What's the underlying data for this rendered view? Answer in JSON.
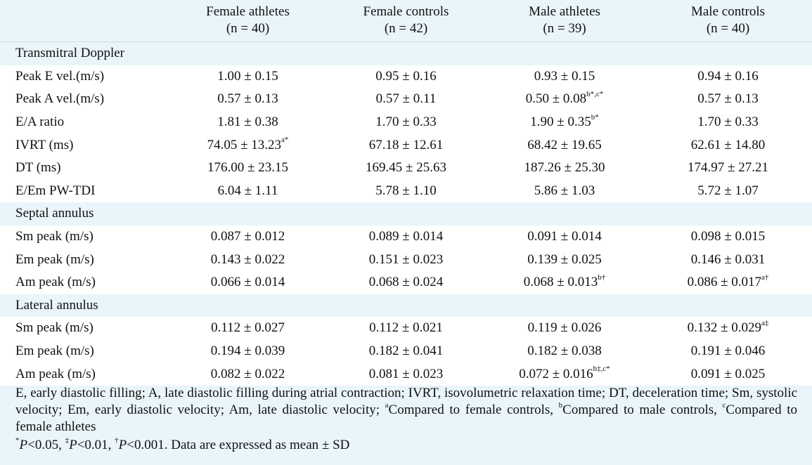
{
  "header": {
    "columns": [
      {
        "line1": "",
        "line2": ""
      },
      {
        "line1": "Female athletes",
        "line2": "(n = 40)"
      },
      {
        "line1": "Female controls",
        "line2": "(n = 42)"
      },
      {
        "line1": "Male athletes",
        "line2": "(n = 39)"
      },
      {
        "line1": "Male controls",
        "line2": "(n = 40)"
      }
    ]
  },
  "sections": [
    {
      "title": "Transmitral Doppler",
      "rows": [
        {
          "label": "Peak E vel.(m/s)",
          "cells": [
            {
              "v": "1.00 ± 0.15",
              "s": ""
            },
            {
              "v": "0.95 ± 0.16",
              "s": ""
            },
            {
              "v": "0.93 ± 0.15",
              "s": ""
            },
            {
              "v": "0.94 ± 0.16",
              "s": ""
            }
          ]
        },
        {
          "label": "Peak A vel.(m/s)",
          "cells": [
            {
              "v": "0.57 ± 0.13",
              "s": ""
            },
            {
              "v": "0.57 ± 0.11",
              "s": ""
            },
            {
              "v": "0.50 ± 0.08",
              "s": "b*,c*"
            },
            {
              "v": "0.57 ± 0.13",
              "s": ""
            }
          ]
        },
        {
          "label": "E/A ratio",
          "cells": [
            {
              "v": "1.81 ± 0.38",
              "s": ""
            },
            {
              "v": "1.70 ± 0.33",
              "s": ""
            },
            {
              "v": "1.90 ± 0.35",
              "s": "b*"
            },
            {
              "v": "1.70 ± 0.33",
              "s": ""
            }
          ]
        },
        {
          "label": "IVRT (ms)",
          "cells": [
            {
              "v": "74.05 ± 13.23",
              "s": "a*"
            },
            {
              "v": "67.18 ± 12.61",
              "s": ""
            },
            {
              "v": "68.42 ± 19.65",
              "s": ""
            },
            {
              "v": "62.61 ± 14.80",
              "s": ""
            }
          ]
        },
        {
          "label": "DT (ms)",
          "cells": [
            {
              "v": "176.00 ± 23.15",
              "s": ""
            },
            {
              "v": "169.45 ± 25.63",
              "s": ""
            },
            {
              "v": "187.26 ± 25.30",
              "s": ""
            },
            {
              "v": "174.97 ± 27.21",
              "s": ""
            }
          ]
        },
        {
          "label": "E/Em PW-TDI",
          "cells": [
            {
              "v": "6.04 ± 1.11",
              "s": ""
            },
            {
              "v": "5.78 ± 1.10",
              "s": ""
            },
            {
              "v": "5.86 ± 1.03",
              "s": ""
            },
            {
              "v": "5.72 ± 1.07",
              "s": ""
            }
          ]
        }
      ]
    },
    {
      "title": "Septal annulus",
      "rows": [
        {
          "label": "Sm peak (m/s)",
          "cells": [
            {
              "v": "0.087 ± 0.012",
              "s": ""
            },
            {
              "v": "0.089 ± 0.014",
              "s": ""
            },
            {
              "v": "0.091 ± 0.014",
              "s": ""
            },
            {
              "v": "0.098 ± 0.015",
              "s": ""
            }
          ]
        },
        {
          "label": "Em peak (m/s)",
          "cells": [
            {
              "v": "0.143 ± 0.022",
              "s": ""
            },
            {
              "v": "0.151 ± 0.023",
              "s": ""
            },
            {
              "v": "0.139 ± 0.025",
              "s": ""
            },
            {
              "v": "0.146 ± 0.031",
              "s": ""
            }
          ]
        },
        {
          "label": "Am peak (m/s)",
          "cells": [
            {
              "v": "0.066 ± 0.014",
              "s": ""
            },
            {
              "v": "0.068 ± 0.024",
              "s": ""
            },
            {
              "v": "0.068 ± 0.013",
              "s": "b†"
            },
            {
              "v": "0.086 ± 0.017",
              "s": "a†"
            }
          ]
        }
      ]
    },
    {
      "title": "Lateral annulus",
      "rows": [
        {
          "label": "Sm peak (m/s)",
          "cells": [
            {
              "v": "0.112 ± 0.027",
              "s": ""
            },
            {
              "v": "0.112 ± 0.021",
              "s": ""
            },
            {
              "v": "0.119 ± 0.026",
              "s": ""
            },
            {
              "v": "0.132 ± 0.029",
              "s": "a‡"
            }
          ]
        },
        {
          "label": "Em peak (m/s)",
          "cells": [
            {
              "v": "0.194 ± 0.039",
              "s": ""
            },
            {
              "v": "0.182 ± 0.041",
              "s": ""
            },
            {
              "v": "0.182 ± 0.038",
              "s": ""
            },
            {
              "v": "0.191 ± 0.046",
              "s": ""
            }
          ]
        },
        {
          "label": "Am peak (m/s)",
          "cells": [
            {
              "v": "0.082 ± 0.022",
              "s": ""
            },
            {
              "v": "0.081 ± 0.023",
              "s": ""
            },
            {
              "v": "0.072 ± 0.016",
              "s": "b‡,c*"
            },
            {
              "v": "0.091 ± 0.025",
              "s": ""
            }
          ]
        }
      ]
    }
  ],
  "footnote": {
    "line1_parts": [
      {
        "t": "E, early diastolic filling; A, late diastolic filling during atrial contraction; IVRT, isovolumetric relaxation time; DT, deceleration time; Sm, systolic velocity; Em, early diastolic velocity; Am, late diastolic velocity; ",
        "sup": false
      },
      {
        "t": "a",
        "sup": true
      },
      {
        "t": "Compared to female controls, ",
        "sup": false
      },
      {
        "t": "b",
        "sup": true
      },
      {
        "t": "Compared to male controls, ",
        "sup": false
      },
      {
        "t": "c",
        "sup": true
      },
      {
        "t": "Compared to female athletes",
        "sup": false
      }
    ],
    "line2_parts": [
      {
        "t": "*",
        "sup": true,
        "it": false
      },
      {
        "t": "P",
        "sup": false,
        "it": true
      },
      {
        "t": "<0.05, ",
        "sup": false,
        "it": false
      },
      {
        "t": "‡",
        "sup": true,
        "it": false
      },
      {
        "t": "P",
        "sup": false,
        "it": true
      },
      {
        "t": "<0.01, ",
        "sup": false,
        "it": false
      },
      {
        "t": "†",
        "sup": true,
        "it": false
      },
      {
        "t": "P",
        "sup": false,
        "it": true
      },
      {
        "t": "<0.001. Data are expressed as mean ± SD",
        "sup": false,
        "it": false
      }
    ]
  },
  "colors": {
    "background": "#e9f5fa",
    "row_fill": "#ffffff",
    "text": "#111111"
  }
}
